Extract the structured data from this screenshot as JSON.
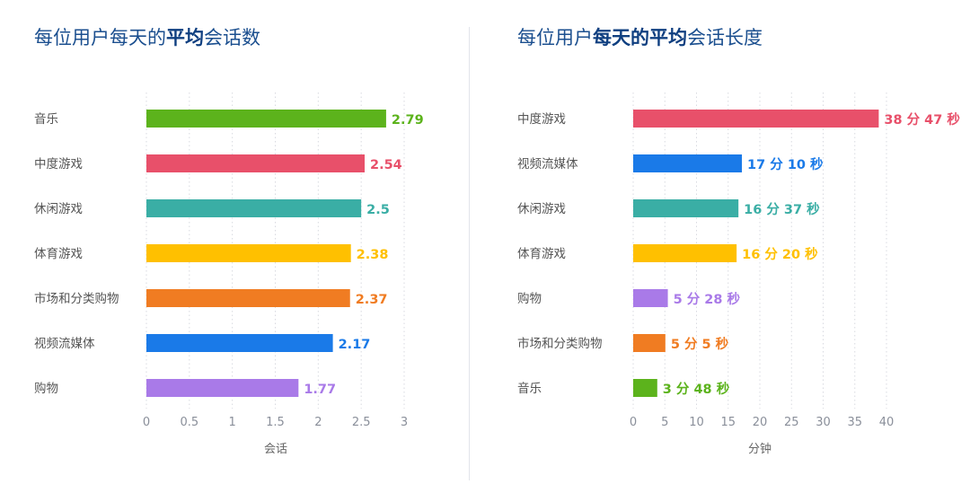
{
  "chart_data": [
    {
      "type": "bar",
      "orientation": "horizontal",
      "title_parts": [
        {
          "text": "每位用户每天的",
          "bold": false
        },
        {
          "text": "平均",
          "bold": true
        },
        {
          "text": "会话数",
          "bold": false
        }
      ],
      "xlabel": "会话",
      "xlim": [
        0,
        3
      ],
      "xticks": [
        "0",
        "0.5",
        "1",
        "1.5",
        "2",
        "2.5",
        "3"
      ],
      "xtick_values": [
        0,
        0.5,
        1,
        1.5,
        2,
        2.5,
        3
      ],
      "grid": "vertical dotted",
      "categories": [
        "音乐",
        "中度游戏",
        "休闲游戏",
        "体育游戏",
        "市场和分类购物",
        "视频流媒体",
        "购物"
      ],
      "values": [
        2.79,
        2.54,
        2.5,
        2.38,
        2.37,
        2.17,
        1.77
      ],
      "labels": [
        "2.79",
        "2.54",
        "2.5",
        "2.38",
        "2.37",
        "2.17",
        "1.77"
      ],
      "colors": [
        "#5cb31c",
        "#e8506a",
        "#3aaea5",
        "#ffc000",
        "#f07c22",
        "#1a7ae8",
        "#a97ae8"
      ]
    },
    {
      "type": "bar",
      "orientation": "horizontal",
      "title_parts": [
        {
          "text": "每位用户",
          "bold": false
        },
        {
          "text": "每天的平均",
          "bold": true
        },
        {
          "text": "会话长度",
          "bold": false
        }
      ],
      "xlabel": "分钟",
      "xlim": [
        0,
        40
      ],
      "xticks": [
        "0",
        "5",
        "10",
        "15",
        "20",
        "25",
        "30",
        "35",
        "40"
      ],
      "xtick_values": [
        0,
        5,
        10,
        15,
        20,
        25,
        30,
        35,
        40
      ],
      "grid": "vertical dotted",
      "categories": [
        "中度游戏",
        "视频流媒体",
        "休闲游戏",
        "体育游戏",
        "购物",
        "市场和分类购物",
        "音乐"
      ],
      "values": [
        38.78,
        17.17,
        16.62,
        16.33,
        5.47,
        5.08,
        3.8
      ],
      "labels": [
        "38 分 47 秒",
        "17 分 10 秒",
        "16 分 37 秒",
        "16 分 20 秒",
        "5 分 28 秒",
        "5 分 5 秒",
        "3 分 48 秒"
      ],
      "colors": [
        "#e8506a",
        "#1a7ae8",
        "#3aaea5",
        "#ffc000",
        "#a97ae8",
        "#f07c22",
        "#5cb31c"
      ]
    }
  ]
}
